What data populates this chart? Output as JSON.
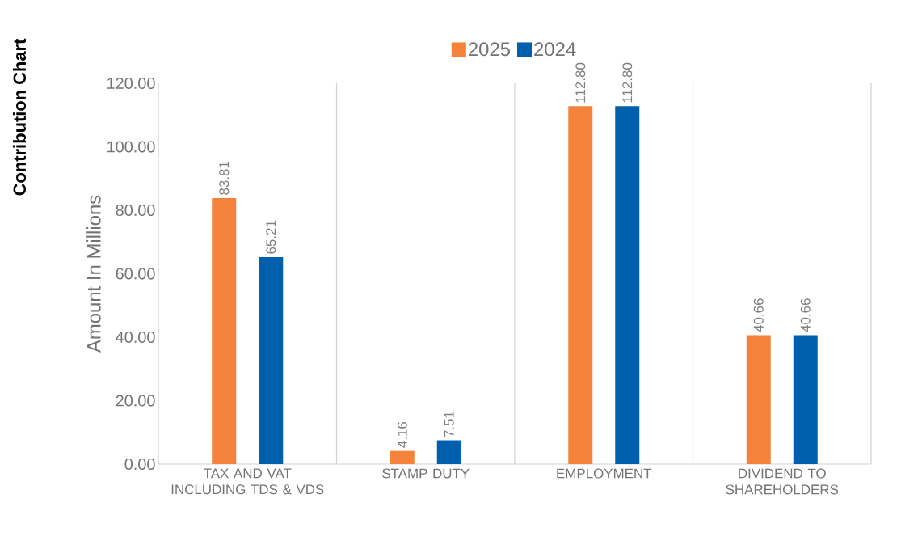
{
  "chart_data": {
    "type": "bar",
    "title": "Contribution Chart",
    "ylabel": "Amount In Millions",
    "categories": [
      "TAX AND VAT INCLUDING TDS & VDS",
      "STAMP DUTY",
      "EMPLOYMENT",
      "DIVIDEND TO SHAREHOLDERS"
    ],
    "series": [
      {
        "name": "2025",
        "color": "#f4823a",
        "values": [
          83.81,
          4.16,
          112.8,
          40.66
        ],
        "value_labels": [
          "83.81",
          "4.16",
          "112.80",
          "40.66"
        ]
      },
      {
        "name": "2024",
        "color": "#0060ad",
        "values": [
          65.21,
          7.51,
          112.8,
          40.66
        ],
        "value_labels": [
          "65.21",
          "7.51",
          "112.80",
          "40.66"
        ]
      }
    ],
    "ylim": [
      0,
      120
    ],
    "yticks": [
      {
        "value": 0,
        "label": "0.00"
      },
      {
        "value": 20,
        "label": "20.00"
      },
      {
        "value": 40,
        "label": "40.00"
      },
      {
        "value": 60,
        "label": "60.00"
      },
      {
        "value": 80,
        "label": "80.00"
      },
      {
        "value": 100,
        "label": "100.00"
      },
      {
        "value": 120,
        "label": "120.00"
      }
    ],
    "grid": "x",
    "legend": "top"
  }
}
